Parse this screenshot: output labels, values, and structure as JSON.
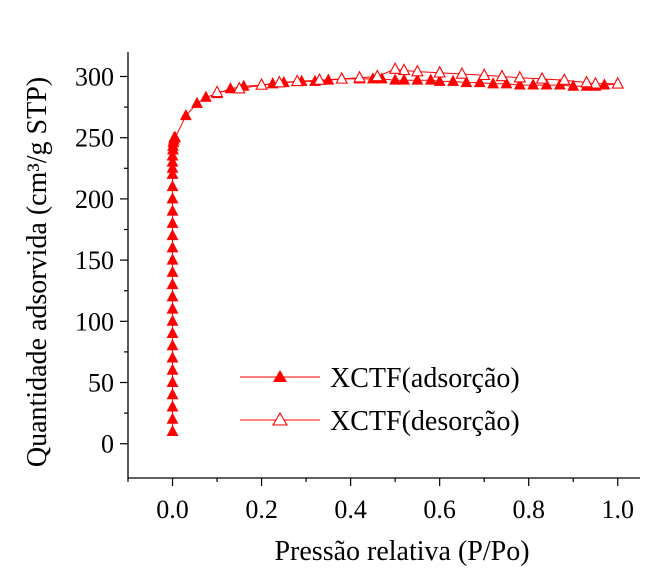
{
  "chart_data": {
    "type": "scatter",
    "xlabel": "Pressão relativa (P/Po)",
    "ylabel": "Quantidade adsorvida (cm³/g STP)",
    "xlim": [
      -0.1,
      1.05
    ],
    "ylim": [
      -28,
      320
    ],
    "x_ticks": [
      0.0,
      0.2,
      0.4,
      0.6,
      0.8,
      1.0
    ],
    "x_tick_labels": [
      "0.0",
      "0.2",
      "0.4",
      "0.6",
      "0.8",
      "1.0"
    ],
    "y_ticks": [
      0,
      50,
      100,
      150,
      200,
      250,
      300
    ],
    "y_tick_labels": [
      "0",
      "50",
      "100",
      "150",
      "200",
      "250",
      "300"
    ],
    "grid": false,
    "legend_position": "bottom-right",
    "colors": {
      "series": "#ff0000",
      "axis": "#000000"
    },
    "series": [
      {
        "name": "XCTF(adsorção)",
        "marker": "filled-triangle",
        "x": [
          0.0,
          0.0,
          0.0,
          0.0,
          0.0,
          0.0,
          0.0,
          0.0,
          0.0,
          0.0,
          0.0,
          0.0,
          0.0,
          0.0,
          0.0,
          0.0,
          0.0,
          0.0,
          0.0,
          0.0,
          0.0,
          0.0,
          0.0,
          0.0,
          0.0,
          0.001,
          0.001,
          0.002,
          0.003,
          0.004,
          0.006,
          0.03,
          0.055,
          0.075,
          0.1,
          0.13,
          0.16,
          0.2,
          0.225,
          0.25,
          0.29,
          0.32,
          0.35,
          0.38,
          0.42,
          0.45,
          0.47,
          0.5,
          0.52,
          0.55,
          0.58,
          0.6,
          0.63,
          0.66,
          0.69,
          0.72,
          0.75,
          0.78,
          0.81,
          0.84,
          0.87,
          0.9,
          0.93,
          0.95,
          0.97,
          1.0
        ],
        "y": [
          10,
          20,
          30,
          40,
          50,
          60,
          70,
          80,
          90,
          100,
          110,
          120,
          130,
          140,
          150,
          160,
          170,
          180,
          190,
          200,
          210,
          220,
          225,
          230,
          235,
          240,
          243,
          246,
          248,
          250,
          250,
          268,
          278,
          283,
          286,
          290,
          292,
          293,
          294,
          295,
          296,
          296,
          297,
          298,
          298,
          298,
          298,
          297,
          297,
          297,
          297,
          296,
          296,
          295,
          295,
          294,
          294,
          293,
          293,
          293,
          293,
          292,
          292,
          292,
          293,
          294
        ]
      },
      {
        "name": "XCTF(desorção)",
        "marker": "open-triangle",
        "x": [
          1.0,
          0.95,
          0.93,
          0.88,
          0.83,
          0.78,
          0.74,
          0.7,
          0.65,
          0.6,
          0.55,
          0.52,
          0.5,
          0.46,
          0.42,
          0.38,
          0.33,
          0.28,
          0.24,
          0.2,
          0.15,
          0.1
        ],
        "y": [
          294,
          294,
          295,
          297,
          298,
          299,
          300,
          301,
          302,
          303,
          304,
          305,
          306,
          300,
          299,
          298,
          297,
          296,
          295,
          293,
          290,
          287
        ]
      }
    ]
  }
}
